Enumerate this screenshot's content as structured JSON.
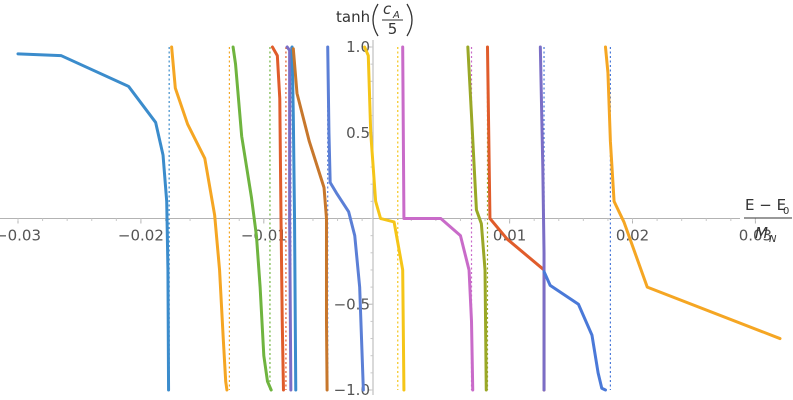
{
  "chart_data": {
    "type": "line",
    "title": "",
    "xlabel": {
      "num_main": "E − E",
      "num_sub": "0",
      "den_main": "M",
      "den_sub": "N"
    },
    "ylabel": {
      "func": "tanh",
      "num_main": "c",
      "num_sub": "A",
      "den": "5"
    },
    "xlim": [
      -0.03,
      0.032
    ],
    "ylim": [
      -1.0,
      1.0
    ],
    "x_ticks": [
      {
        "value": -0.03,
        "label": "−0.03"
      },
      {
        "value": -0.02,
        "label": "−0.02"
      },
      {
        "value": -0.01,
        "label": "−0.01"
      },
      {
        "value": 0.01,
        "label": "0.01"
      },
      {
        "value": 0.02,
        "label": "0.02"
      },
      {
        "value": 0.03,
        "label": "0.03"
      }
    ],
    "y_ticks": [
      {
        "value": 1.0,
        "label": "1.0"
      },
      {
        "value": 0.5,
        "label": "0.5"
      },
      {
        "value": -0.5,
        "label": "−0.5"
      },
      {
        "value": -1.0,
        "label": "−1.0"
      }
    ],
    "grid": false,
    "legend": "none",
    "dashed_verticals": [
      {
        "x": -0.0177,
        "color": "#3b8ccc"
      },
      {
        "x": -0.0128,
        "color": "#f5a623"
      },
      {
        "x": -0.0095,
        "color": "#6fb43f"
      },
      {
        "x": -0.0082,
        "color": "#e05c2b"
      },
      {
        "x": -0.0078,
        "color": "#7b6ec6"
      },
      {
        "x": -0.0048,
        "color": "#5b7fd6"
      },
      {
        "x": 0.0009,
        "color": "#f5c518"
      },
      {
        "x": 0.0069,
        "color": "#c96bc9"
      },
      {
        "x": 0.0082,
        "color": "#9aa827"
      },
      {
        "x": 0.0128,
        "color": "#4a79d8"
      },
      {
        "x": 0.0182,
        "color": "#4a79d8"
      }
    ],
    "series": [
      {
        "color": "#3b8ccc",
        "points": [
          [
            -0.03,
            0.96
          ],
          [
            -0.0265,
            0.95
          ],
          [
            -0.021,
            0.77
          ],
          [
            -0.0188,
            0.56
          ],
          [
            -0.0182,
            0.37
          ],
          [
            -0.0179,
            0.1
          ],
          [
            -0.0178,
            -0.3
          ],
          [
            -0.01775,
            -1.0
          ]
        ]
      },
      {
        "color": "#f5a623",
        "points": [
          [
            -0.0175,
            1.0
          ],
          [
            -0.0172,
            0.76
          ],
          [
            -0.0162,
            0.55
          ],
          [
            -0.0148,
            0.35
          ],
          [
            -0.014,
            0.02
          ],
          [
            -0.0136,
            -0.3
          ],
          [
            -0.0133,
            -0.7
          ],
          [
            -0.0131,
            -0.95
          ],
          [
            -0.013,
            -1.0
          ]
        ]
      },
      {
        "color": "#6fb43f",
        "points": [
          [
            -0.0125,
            1.0
          ],
          [
            -0.0123,
            0.9
          ],
          [
            -0.0118,
            0.48
          ],
          [
            -0.011,
            0.12
          ],
          [
            -0.0106,
            -0.1
          ],
          [
            -0.0103,
            -0.4
          ],
          [
            -0.01,
            -0.8
          ],
          [
            -0.0097,
            -0.95
          ],
          [
            -0.0094,
            -1.0
          ]
        ]
      },
      {
        "color": "#e05c2b",
        "points": [
          [
            -0.0093,
            1.0
          ],
          [
            -0.0089,
            0.95
          ],
          [
            -0.0087,
            0.7
          ],
          [
            -0.0086,
            0.0
          ],
          [
            -0.0085,
            -0.6
          ],
          [
            -0.0084,
            -1.0
          ]
        ]
      },
      {
        "color": "#7b6ec6",
        "points": [
          [
            -0.0081,
            1.0
          ],
          [
            -0.0079,
            0.98
          ],
          [
            -0.0079,
            0.0
          ],
          [
            -0.0078,
            -1.0
          ]
        ]
      },
      {
        "color": "#3b8ccc",
        "points": [
          [
            -0.0077,
            1.0
          ],
          [
            -0.0076,
            0.6
          ],
          [
            -0.0075,
            0.0
          ],
          [
            -0.0074,
            -1.0
          ]
        ]
      },
      {
        "color": "#c7772c",
        "points": [
          [
            -0.0076,
            0.99
          ],
          [
            -0.0073,
            0.73
          ],
          [
            -0.0063,
            0.45
          ],
          [
            -0.0051,
            0.18
          ],
          [
            -0.0049,
            0.0
          ],
          [
            -0.0049,
            -0.6
          ],
          [
            -0.00485,
            -1.0
          ]
        ]
      },
      {
        "color": "#5b7fd6",
        "points": [
          [
            -0.0048,
            1.0
          ],
          [
            -0.0047,
            0.5
          ],
          [
            -0.0046,
            0.21
          ],
          [
            -0.0041,
            0.15
          ],
          [
            -0.0031,
            0.04
          ],
          [
            -0.0026,
            -0.1
          ],
          [
            -0.0022,
            -0.4
          ],
          [
            -0.002,
            -0.8
          ],
          [
            -0.0019,
            -1.0
          ]
        ]
      },
      {
        "color": "#f5c518",
        "points": [
          [
            -0.0018,
            1.0
          ],
          [
            -0.0015,
            0.95
          ],
          [
            -0.0013,
            0.5
          ],
          [
            -0.0009,
            0.1
          ],
          [
            -0.0005,
            0.0
          ],
          [
            0.0006,
            -0.02
          ],
          [
            0.0013,
            -0.3
          ],
          [
            0.0014,
            -1.0
          ]
        ]
      },
      {
        "color": "#c96bc9",
        "points": [
          [
            0.0013,
            1.0
          ],
          [
            0.0014,
            0.0
          ],
          [
            0.0044,
            0.0
          ],
          [
            0.006,
            -0.1
          ],
          [
            0.0067,
            -0.3
          ],
          [
            0.0069,
            -0.6
          ],
          [
            0.007,
            -1.0
          ]
        ]
      },
      {
        "color": "#9aa827",
        "points": [
          [
            0.0066,
            1.0
          ],
          [
            0.0069,
            0.6
          ],
          [
            0.0073,
            0.05
          ],
          [
            0.0077,
            -0.03
          ],
          [
            0.008,
            -0.3
          ],
          [
            0.0081,
            -1.0
          ]
        ]
      },
      {
        "color": "#e05c2b",
        "points": [
          [
            0.0082,
            1.0
          ],
          [
            0.0083,
            0.5
          ],
          [
            0.0084,
            0.0
          ],
          [
            0.0098,
            -0.12
          ],
          [
            0.0128,
            -0.3
          ],
          [
            0.0128,
            -1.0
          ]
        ]
      },
      {
        "color": "#7b6ec6",
        "points": [
          [
            0.0125,
            1.0
          ],
          [
            0.0127,
            0.3
          ],
          [
            0.0128,
            -0.2
          ],
          [
            0.0128,
            -1.0
          ]
        ]
      },
      {
        "color": "#4a79d8",
        "points": [
          [
            0.0128,
            -0.31
          ],
          [
            0.0133,
            -0.39
          ],
          [
            0.0156,
            -0.5
          ],
          [
            0.0167,
            -0.68
          ],
          [
            0.0172,
            -0.9
          ],
          [
            0.0175,
            -0.99
          ],
          [
            0.0178,
            -1.0
          ]
        ]
      },
      {
        "color": "#f5a623",
        "points": [
          [
            0.0178,
            1.0
          ],
          [
            0.018,
            0.85
          ],
          [
            0.0182,
            0.45
          ],
          [
            0.0185,
            0.1
          ],
          [
            0.0193,
            -0.02
          ],
          [
            0.0212,
            -0.4
          ],
          [
            0.032,
            -0.7
          ]
        ]
      }
    ]
  }
}
